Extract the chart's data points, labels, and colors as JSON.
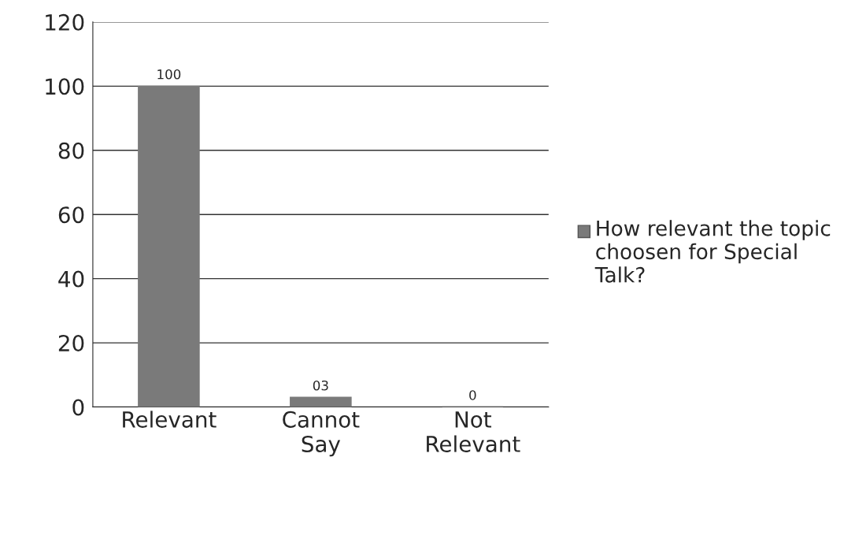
{
  "chart_data": {
    "type": "bar",
    "categories": [
      "Relevant",
      "Cannot\nSay",
      "Not\nRelevant"
    ],
    "series": [
      {
        "name": "How relevant the topic choosen for Special Talk?",
        "color": "#7a7a7a",
        "values": [
          100,
          3,
          0
        ],
        "value_labels": [
          "100",
          "03",
          "0"
        ]
      }
    ],
    "ylim": [
      0,
      120
    ],
    "yticks": [
      0,
      20,
      40,
      60,
      80,
      100,
      120
    ],
    "grid": "y",
    "legend": "right"
  }
}
